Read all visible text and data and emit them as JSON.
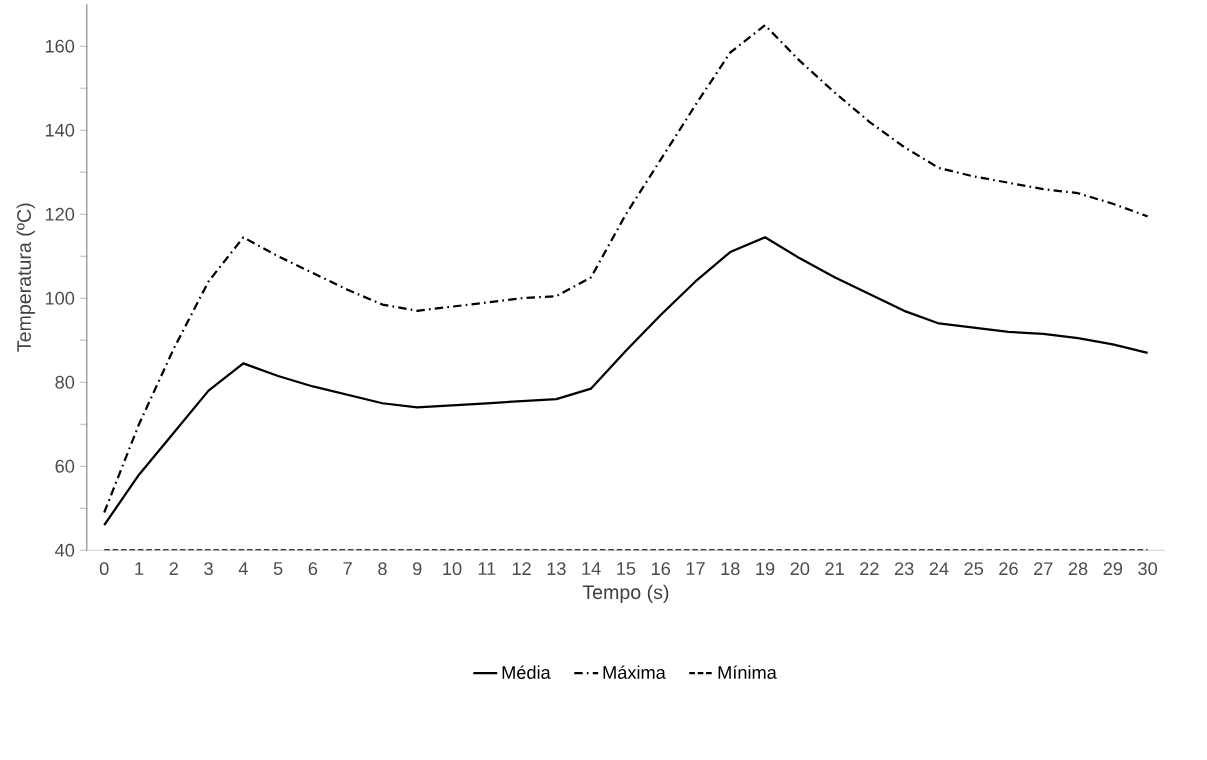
{
  "chart_data": {
    "type": "line",
    "xlabel": "Tempo (s)",
    "ylabel": "Temperatura (ºC)",
    "categories": [
      "0",
      "1",
      "2",
      "3",
      "4",
      "5",
      "6",
      "7",
      "8",
      "9",
      "10",
      "11",
      "12",
      "13",
      "14",
      "15",
      "16",
      "17",
      "18",
      "19",
      "20",
      "21",
      "22",
      "23",
      "24",
      "25",
      "26",
      "27",
      "28",
      "29",
      "30"
    ],
    "series": [
      {
        "name": "Média",
        "color": "#000000",
        "line_style": "solid",
        "values": [
          46,
          58,
          68,
          78,
          84.5,
          81.5,
          79,
          77,
          75,
          74,
          74.5,
          75,
          75.5,
          76,
          78.5,
          87.5,
          96,
          104,
          111,
          114.5,
          109.5,
          105,
          101,
          97,
          94,
          93,
          92,
          91.5,
          90.5,
          89,
          87
        ]
      },
      {
        "name": "Máxima",
        "color": "#000000",
        "line_style": "dashdot",
        "values": [
          49,
          70,
          88,
          104,
          114.5,
          110,
          106,
          102,
          98.5,
          97,
          98,
          99,
          100,
          100.5,
          105,
          120,
          133,
          146,
          158.5,
          165,
          156.5,
          149,
          142,
          136,
          131,
          129,
          127.5,
          126,
          125,
          122.5,
          119.5
        ]
      },
      {
        "name": "Mínima",
        "color": "#000000",
        "line_style": "dashed",
        "values": [
          40,
          40,
          40,
          40,
          40,
          40,
          40,
          40,
          40,
          40,
          40,
          40,
          40,
          40,
          40,
          40,
          40,
          40,
          40,
          40,
          40,
          40,
          40,
          40,
          40,
          40,
          40,
          40,
          40,
          40,
          40
        ]
      }
    ],
    "ylim": [
      40,
      170
    ],
    "yticks": [
      40,
      60,
      80,
      100,
      120,
      140,
      160
    ],
    "grid": false,
    "legend": "bottom",
    "marker": "none"
  }
}
